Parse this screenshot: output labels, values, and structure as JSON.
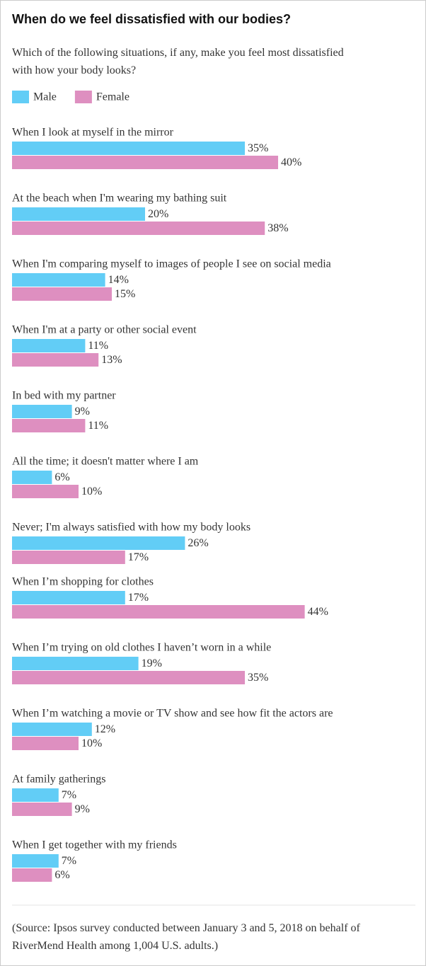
{
  "chart_data": {
    "type": "bar",
    "orientation": "horizontal",
    "title": "When do we feel dissatisfied with our bodies?",
    "subtitle": "Which of the following situations, if any, make you feel most dissatisfied with how your body looks?",
    "categories": [
      "When I look at myself in the mirror",
      "At the beach when I'm wearing my bathing suit",
      "When I'm comparing myself to images of people I see on social media",
      "When I'm at a party or other social event",
      "In bed with my partner",
      "All the time; it doesn't matter where I am",
      "Never; I'm always satisfied with how my body looks",
      "When I’m shopping for clothes",
      "When I’m trying on old clothes I haven’t worn in a while",
      "When I’m watching a movie or TV show and see how fit the actors are",
      "At family gatherings",
      "When I get together with my friends"
    ],
    "series": [
      {
        "name": "Male",
        "color": "#62cdf6",
        "values": [
          35,
          20,
          14,
          11,
          9,
          6,
          26,
          17,
          19,
          12,
          7,
          7
        ],
        "value_labels": [
          "35%",
          "20%",
          "14%",
          "11%",
          "9%",
          "6%",
          "26%",
          "17%",
          "19%",
          "12%",
          "7%",
          "7%"
        ]
      },
      {
        "name": "Female",
        "color": "#de8fc0",
        "values": [
          40,
          38,
          15,
          13,
          11,
          10,
          17,
          44,
          35,
          10,
          9,
          6
        ],
        "value_labels": [
          "40%",
          "38%",
          "15%",
          "13%",
          "11%",
          "10%",
          "17%",
          "44%",
          "35%",
          "10%",
          "9%",
          "6%"
        ]
      }
    ],
    "legend": "top-left",
    "source": "(Source: Ipsos survey conducted between January 3 and 5, 2018 on behalf of RiverMend Health among 1,004 U.S. adults.)"
  }
}
